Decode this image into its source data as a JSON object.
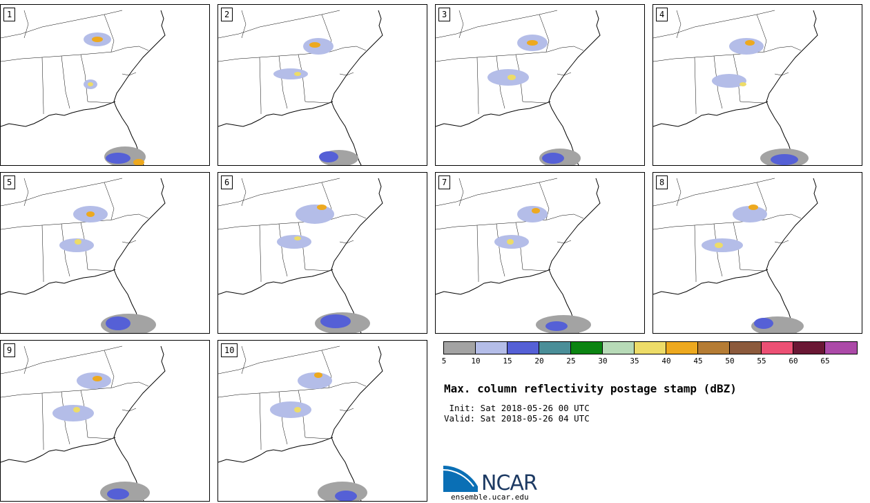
{
  "panels": [
    "1",
    "2",
    "3",
    "4",
    "5",
    "6",
    "7",
    "8",
    "9",
    "10"
  ],
  "colorbar": {
    "ticks": [
      "5",
      "10",
      "15",
      "20",
      "25",
      "30",
      "35",
      "40",
      "45",
      "50",
      "55",
      "60",
      "65"
    ],
    "colors": [
      "#a3a3a3",
      "#b4bde8",
      "#5560d6",
      "#4a8e98",
      "#0b8412",
      "#b7dab7",
      "#eddc68",
      "#eda91f",
      "#b57c34",
      "#8c5a3c",
      "#ec5074",
      "#6a1734",
      "#ac4aa8"
    ]
  },
  "title": "Max. column reflectivity postage stamp (dBZ)",
  "init": " Init: Sat 2018-05-26 00 UTC",
  "valid": "Valid: Sat 2018-05-26 04 UTC",
  "logo": {
    "name": "NCAR",
    "url": "ensemble.ucar.edu"
  }
}
